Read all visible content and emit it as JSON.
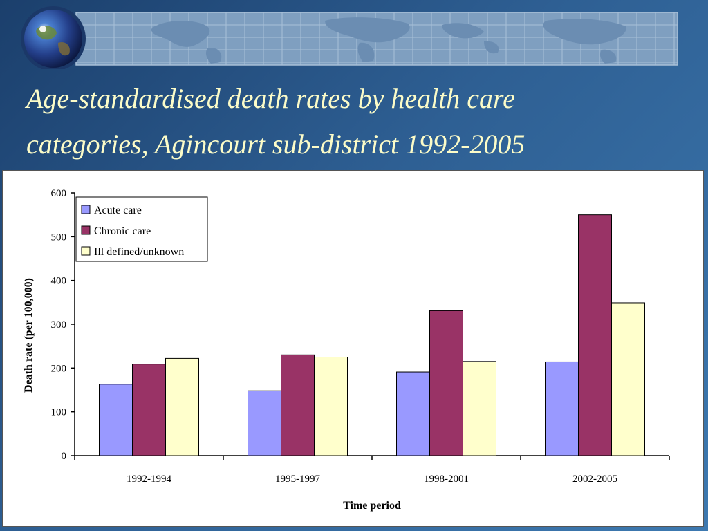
{
  "slide": {
    "title_line1": "Age-standardised death rates by health care",
    "title_line2": "categories, Agincourt sub-district 1992-2005"
  },
  "decor": {
    "globe": "globe-icon",
    "map": "world-map-grid"
  },
  "colors": {
    "acute": "#9999ff",
    "chronic": "#993366",
    "ill_defined": "#ffffcc"
  },
  "chart_data": {
    "type": "bar",
    "title": "",
    "xlabel": "Time period",
    "ylabel": "Death rate (per 100,000)",
    "ylim": [
      0,
      600
    ],
    "yticks": [
      0,
      100,
      200,
      300,
      400,
      500,
      600
    ],
    "categories": [
      "1992-1994",
      "1995-1997",
      "1998-2001",
      "2002-2005"
    ],
    "series": [
      {
        "name": "Acute care",
        "values": [
          163,
          148,
          191,
          214
        ]
      },
      {
        "name": "Chronic care",
        "values": [
          209,
          230,
          331,
          550
        ]
      },
      {
        "name": "Ill defined/unknown",
        "values": [
          222,
          225,
          215,
          349
        ]
      }
    ],
    "legend_position": "top-left",
    "grid": false
  }
}
